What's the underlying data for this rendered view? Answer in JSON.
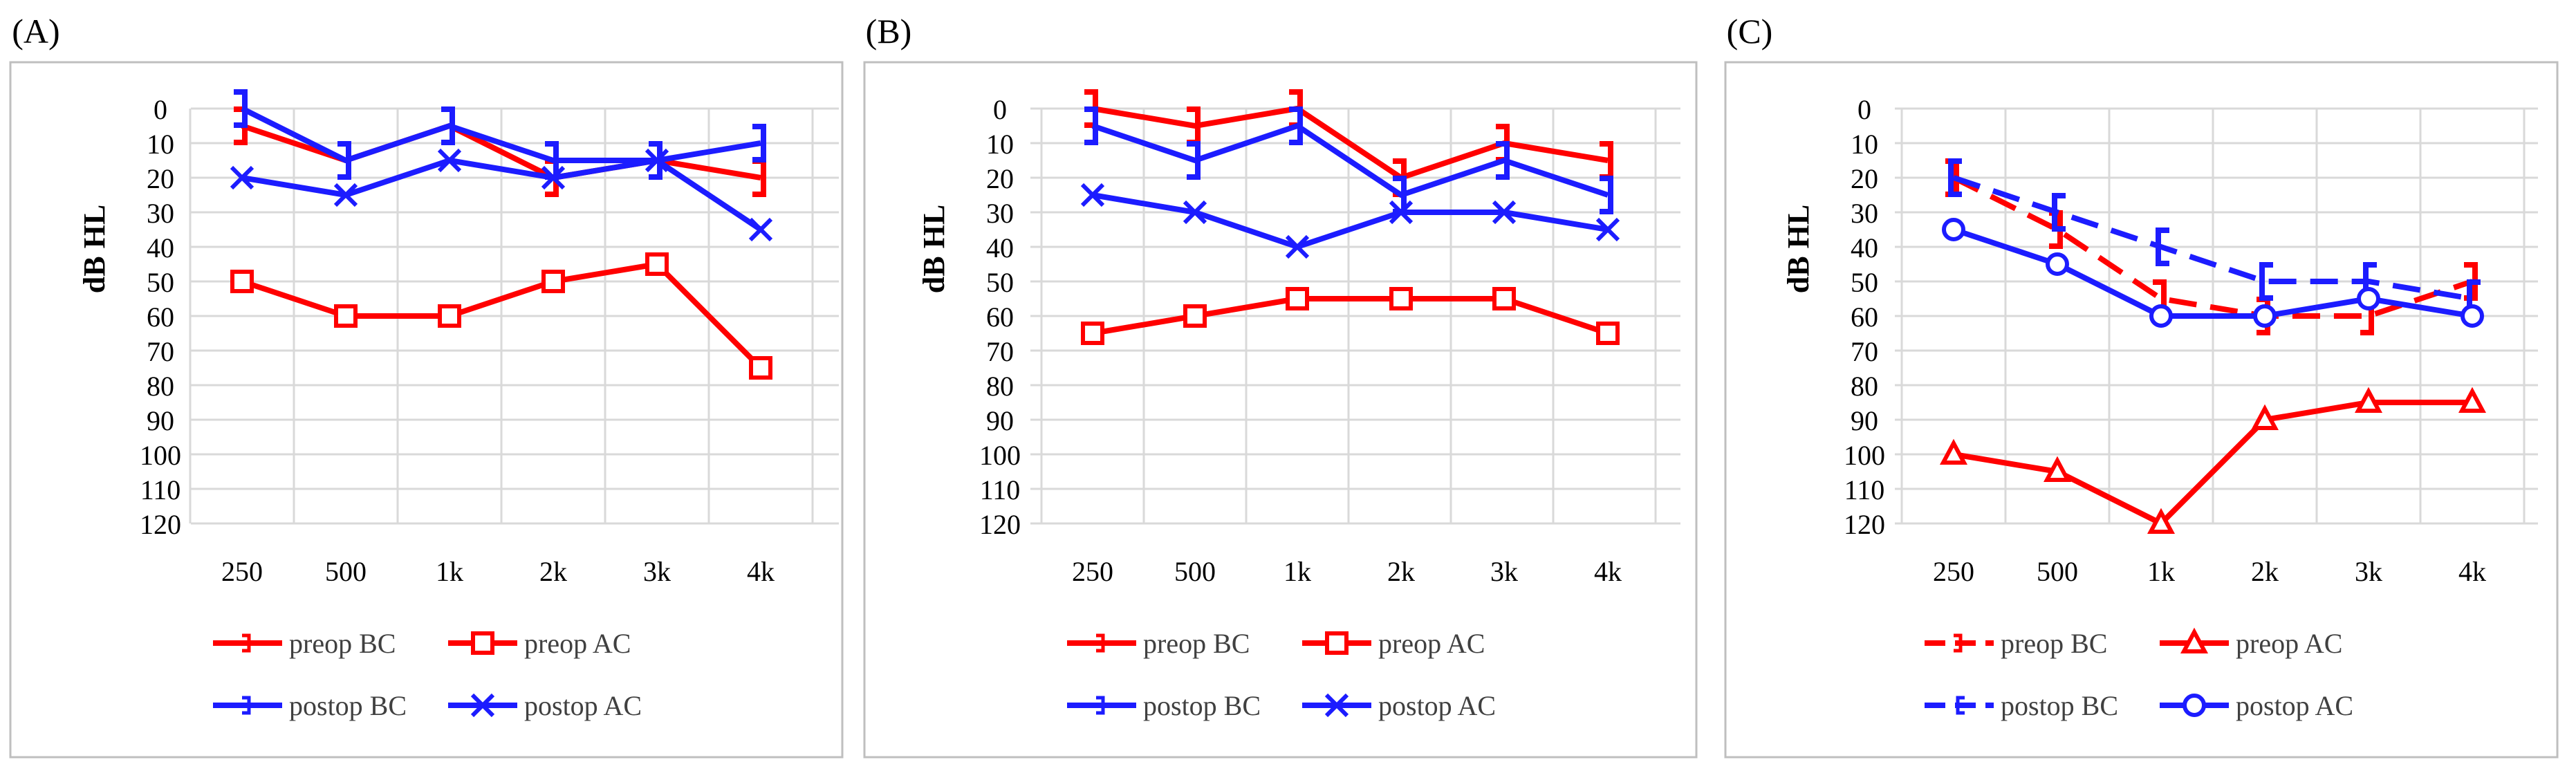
{
  "figure": {
    "panel_labels": [
      "(A)",
      "(B)",
      "(C)"
    ]
  },
  "colors": {
    "red": "#ff0000",
    "blue": "#1c1cff",
    "grid": "#d9d9d9",
    "frame": "#bfbfbf",
    "text": "#000000"
  },
  "chart_data": [
    {
      "panel": "(A)",
      "type": "line",
      "ylabel": "dB HL",
      "ylim": [
        0,
        120
      ],
      "y_inverted": true,
      "yticks": [
        0,
        10,
        20,
        30,
        40,
        50,
        60,
        70,
        80,
        90,
        100,
        110,
        120
      ],
      "categories": [
        "250",
        "500",
        "1k",
        "2k",
        "3k",
        "4k"
      ],
      "series": [
        {
          "name": "preop BC",
          "color": "red",
          "marker": "bracket-right",
          "dash": false,
          "values": [
            5,
            15,
            5,
            20,
            15,
            20
          ]
        },
        {
          "name": "preop AC",
          "color": "red",
          "marker": "square",
          "dash": false,
          "values": [
            50,
            60,
            60,
            50,
            45,
            75
          ]
        },
        {
          "name": "postop BC",
          "color": "blue",
          "marker": "bracket-right",
          "dash": false,
          "values": [
            0,
            15,
            5,
            15,
            15,
            10
          ]
        },
        {
          "name": "postop AC",
          "color": "blue",
          "marker": "x",
          "dash": false,
          "values": [
            20,
            25,
            15,
            20,
            15,
            35
          ]
        }
      ]
    },
    {
      "panel": "(B)",
      "type": "line",
      "ylabel": "dB HL",
      "ylim": [
        0,
        120
      ],
      "y_inverted": true,
      "yticks": [
        0,
        10,
        20,
        30,
        40,
        50,
        60,
        70,
        80,
        90,
        100,
        110,
        120
      ],
      "categories": [
        "250",
        "500",
        "1k",
        "2k",
        "3k",
        "4k"
      ],
      "series": [
        {
          "name": "preop BC",
          "color": "red",
          "marker": "bracket-right",
          "dash": false,
          "values": [
            0,
            5,
            0,
            20,
            10,
            15
          ]
        },
        {
          "name": "preop AC",
          "color": "red",
          "marker": "square",
          "dash": false,
          "values": [
            65,
            60,
            55,
            55,
            55,
            65
          ]
        },
        {
          "name": "postop BC",
          "color": "blue",
          "marker": "bracket-right",
          "dash": false,
          "values": [
            5,
            15,
            5,
            25,
            15,
            25
          ]
        },
        {
          "name": "postop AC",
          "color": "blue",
          "marker": "x",
          "dash": false,
          "values": [
            25,
            30,
            40,
            30,
            30,
            35
          ]
        }
      ]
    },
    {
      "panel": "(C)",
      "type": "line",
      "ylabel": "dB HL",
      "ylim": [
        0,
        120
      ],
      "y_inverted": true,
      "yticks": [
        0,
        10,
        20,
        30,
        40,
        50,
        60,
        70,
        80,
        90,
        100,
        110,
        120
      ],
      "categories": [
        "250",
        "500",
        "1k",
        "2k",
        "3k",
        "4k"
      ],
      "series": [
        {
          "name": "preop BC",
          "color": "red",
          "marker": "bracket-right",
          "dash": true,
          "values": [
            20,
            35,
            55,
            60,
            60,
            50
          ]
        },
        {
          "name": "preop AC",
          "color": "red",
          "marker": "triangle",
          "dash": false,
          "values": [
            100,
            105,
            120,
            90,
            85,
            85
          ]
        },
        {
          "name": "postop BC",
          "color": "blue",
          "marker": "bracket-left",
          "dash": true,
          "values": [
            20,
            30,
            40,
            50,
            50,
            55
          ]
        },
        {
          "name": "postop AC",
          "color": "blue",
          "marker": "circle",
          "dash": false,
          "values": [
            35,
            45,
            60,
            60,
            55,
            60
          ]
        }
      ]
    }
  ]
}
